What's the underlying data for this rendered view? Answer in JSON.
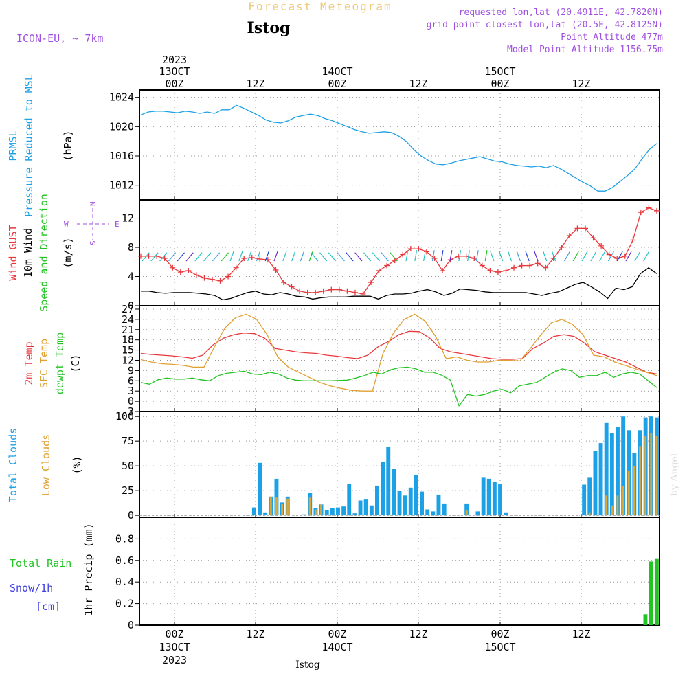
{
  "header": {
    "title_faded": "Forecast Meteogram",
    "station": "Istog",
    "model": "ICON-EU, ~ 7km",
    "requested": "requested lon,lat (20.4911E, 42.7820N)",
    "gridpoint": "grid point closest lon,lat (20.5E, 42.8125N)",
    "point_alt": "Point Altitude 477m",
    "model_alt": "Model Point Altitude 1156.75m",
    "watermark": "by Angel",
    "footer_station": "Istog"
  },
  "colors": {
    "pressure": "#1ca0e6",
    "gust": "#e8383c",
    "wind": "#000000",
    "t2m": "#e8383c",
    "sfc": "#e0a030",
    "dew": "#22c322",
    "total_cloud": "#1ca0e6",
    "low_cloud": "#d6a840",
    "rain": "#22c322",
    "snow": "#4040e0",
    "meta": "#a050e0",
    "faded": "#f0c878"
  },
  "panel_labels": {
    "pressure": [
      "PRMSL",
      "Pressure Reduced to MSL",
      "(hPa)"
    ],
    "wind": [
      "Wind GUST",
      "10m Wind",
      "Speed and Direction",
      "(m/s)"
    ],
    "compass": [
      "N",
      "S",
      "W",
      "E"
    ],
    "temp": [
      "2m Temp",
      "SFC Temp",
      "dewpt Temp",
      "(C)"
    ],
    "cloud": [
      "Total Clouds",
      "Low Clouds",
      "(%)"
    ],
    "precip": [
      "Total Rain",
      "Snow/1h",
      "[cm]",
      "1hr Precip (mm)"
    ]
  },
  "time_axis": {
    "top_year": "2023",
    "top_days": [
      "13OCT",
      "14OCT",
      "15OCT"
    ],
    "bottom_days": [
      "13OCT",
      "14OCT",
      "15OCT"
    ],
    "bottom_year": "2023",
    "ticks": [
      "00Z",
      "12Z",
      "00Z",
      "12Z",
      "00Z",
      "12Z"
    ]
  },
  "chart_data": [
    {
      "type": "line",
      "name": "pressure",
      "ylim": [
        1010,
        1025
      ],
      "yticks": [
        1012,
        1016,
        1020,
        1024
      ],
      "series": [
        {
          "name": "PRMSL",
          "values": [
            1021.6,
            1022.0,
            1022.1,
            1022.1,
            1022.0,
            1021.9,
            1022.1,
            1022.0,
            1021.8,
            1022.0,
            1021.8,
            1022.3,
            1022.3,
            1022.9,
            1022.5,
            1022.0,
            1021.5,
            1020.9,
            1020.6,
            1020.5,
            1020.8,
            1021.3,
            1021.5,
            1021.7,
            1021.5,
            1021.1,
            1020.8,
            1020.4,
            1020.0,
            1019.6,
            1019.3,
            1019.1,
            1019.2,
            1019.3,
            1019.2,
            1018.7,
            1018.0,
            1016.9,
            1016.0,
            1015.4,
            1014.9,
            1014.8,
            1015.0,
            1015.3,
            1015.5,
            1015.7,
            1015.9,
            1015.6,
            1015.3,
            1015.2,
            1014.9,
            1014.7,
            1014.6,
            1014.5,
            1014.6,
            1014.4,
            1014.7,
            1014.2,
            1013.6,
            1013.0,
            1012.4,
            1011.9,
            1011.2,
            1011.2,
            1011.7,
            1012.5,
            1013.3,
            1014.2,
            1015.6,
            1016.9,
            1017.7
          ]
        }
      ]
    },
    {
      "type": "line",
      "name": "wind",
      "ylim": [
        0,
        14.5
      ],
      "yticks": [
        0,
        4,
        8,
        12
      ],
      "series": [
        {
          "name": "Wind GUST",
          "values": [
            6.8,
            6.8,
            6.8,
            6.5,
            5.2,
            4.6,
            4.8,
            4.2,
            3.8,
            3.6,
            3.4,
            4.0,
            5.2,
            6.5,
            6.6,
            6.4,
            6.3,
            4.9,
            3.2,
            2.6,
            2.0,
            1.8,
            1.8,
            2.0,
            2.2,
            2.2,
            2.0,
            1.8,
            1.6,
            3.2,
            4.8,
            5.5,
            6.2,
            7.0,
            7.8,
            7.8,
            7.4,
            6.5,
            4.8,
            6.3,
            6.8,
            6.8,
            6.5,
            5.5,
            4.8,
            4.6,
            4.8,
            5.2,
            5.5,
            5.5,
            5.8,
            5.2,
            6.5,
            8.0,
            9.6,
            10.6,
            10.6,
            9.3,
            8.2,
            7.0,
            6.5,
            6.8,
            9.0,
            12.8,
            13.4,
            13.0
          ]
        },
        {
          "name": "10m Wind",
          "values": [
            2.0,
            2.0,
            1.8,
            1.7,
            1.8,
            1.8,
            1.8,
            1.7,
            1.6,
            1.4,
            0.8,
            1.0,
            1.4,
            1.8,
            2.0,
            1.6,
            1.5,
            1.8,
            1.6,
            1.3,
            1.2,
            0.9,
            1.1,
            1.2,
            1.2,
            1.2,
            1.3,
            1.3,
            1.3,
            0.9,
            1.4,
            1.6,
            1.6,
            1.7,
            2.0,
            2.2,
            1.9,
            1.4,
            1.7,
            2.3,
            2.2,
            2.1,
            1.9,
            1.8,
            1.8,
            1.8,
            1.8,
            1.8,
            1.6,
            1.4,
            1.7,
            1.9,
            2.4,
            2.9,
            3.2,
            2.6,
            1.9,
            1.0,
            2.4,
            2.2,
            2.6,
            4.4,
            5.2,
            4.4
          ]
        }
      ]
    },
    {
      "type": "line",
      "name": "temperature",
      "ylim": [
        -3,
        28
      ],
      "yticks": [
        -3,
        0,
        3,
        6,
        9,
        12,
        15,
        18,
        21,
        24,
        27
      ],
      "series": [
        {
          "name": "2m Temp",
          "values": [
            14.0,
            13.7,
            13.5,
            13.3,
            13.0,
            12.6,
            13.5,
            16.5,
            18.5,
            19.5,
            20.0,
            19.8,
            18.5,
            15.5,
            15.0,
            14.5,
            14.2,
            14.0,
            13.5,
            13.2,
            12.8,
            12.5,
            13.5,
            16.0,
            17.5,
            19.5,
            20.5,
            20.4,
            18.5,
            15.5,
            14.5,
            14.0,
            13.5,
            13.0,
            12.5,
            12.3,
            12.3,
            12.5,
            15.5,
            17.0,
            19.0,
            19.5,
            19.0,
            17.0,
            14.5,
            13.5,
            12.5,
            11.5,
            10.0,
            8.5,
            8.0
          ]
        },
        {
          "name": "SFC Temp",
          "values": [
            12.2,
            11.5,
            11.0,
            10.8,
            10.5,
            10.0,
            10.0,
            16.0,
            21.5,
            24.5,
            25.5,
            24.0,
            19.5,
            13.0,
            10.0,
            8.5,
            7.0,
            5.5,
            4.5,
            3.8,
            3.2,
            3.0,
            3.0,
            14.0,
            20.0,
            24.0,
            25.5,
            23.5,
            19.0,
            12.5,
            13.0,
            12.0,
            11.5,
            11.5,
            12.0,
            12.0,
            11.8,
            15.5,
            19.5,
            23.0,
            24.0,
            22.5,
            19.5,
            13.5,
            13.0,
            11.5,
            10.5,
            9.5,
            8.5,
            7.5
          ]
        },
        {
          "name": "dewpt Temp",
          "values": [
            5.5,
            5.0,
            6.3,
            6.8,
            6.5,
            6.5,
            6.8,
            6.3,
            6.0,
            7.5,
            8.2,
            8.5,
            8.8,
            8.0,
            7.8,
            8.5,
            8.0,
            6.8,
            6.2,
            6.0,
            6.0,
            6.0,
            6.0,
            6.1,
            6.2,
            6.8,
            7.5,
            8.5,
            8.0,
            9.2,
            9.8,
            10.0,
            9.5,
            8.5,
            8.5,
            7.6,
            6.2,
            -1.3,
            2.0,
            1.5,
            2.0,
            3.0,
            3.5,
            2.5,
            4.5,
            5.0,
            5.5,
            7.0,
            8.5,
            9.5,
            9.0,
            7.0,
            7.5,
            7.5,
            8.5,
            7.0,
            8.0,
            8.5,
            8.0,
            6.0,
            4.0
          ]
        }
      ]
    },
    {
      "type": "bar",
      "name": "clouds",
      "ylim": [
        -2,
        105
      ],
      "yticks": [
        0,
        25,
        50,
        75,
        100
      ],
      "series": [
        {
          "name": "Total Clouds",
          "values": [
            0,
            0,
            0,
            0,
            0,
            0,
            0,
            0,
            0,
            0,
            0,
            0,
            0,
            0,
            0,
            0,
            0,
            0,
            0,
            0,
            8,
            53,
            3,
            19,
            37,
            13,
            19,
            0,
            0,
            1,
            23,
            7,
            11,
            5,
            7,
            8,
            9,
            32,
            2,
            15,
            16,
            10,
            30,
            54,
            69,
            47,
            25,
            20,
            28,
            41,
            24,
            6,
            4,
            21,
            12,
            0,
            0,
            0,
            12,
            0,
            4,
            38,
            37,
            34,
            32,
            3,
            0,
            0,
            0,
            0,
            0,
            0,
            0,
            0,
            0,
            0,
            0,
            0,
            0,
            31,
            38,
            65,
            73,
            94,
            83,
            89,
            100,
            86,
            63,
            86,
            99,
            100,
            99
          ]
        },
        {
          "name": "Low Clouds",
          "values": [
            0,
            0,
            0,
            0,
            0,
            0,
            0,
            0,
            0,
            0,
            0,
            0,
            0,
            0,
            0,
            0,
            0,
            0,
            0,
            0,
            0,
            0,
            0,
            19,
            18,
            12,
            17,
            0,
            0,
            0,
            18,
            6,
            11,
            0,
            0,
            0,
            0,
            0,
            0,
            0,
            0,
            0,
            0,
            0,
            0,
            0,
            0,
            0,
            0,
            0,
            0,
            0,
            0,
            0,
            0,
            0,
            0,
            0,
            5,
            0,
            0,
            0,
            0,
            0,
            0,
            0,
            0,
            0,
            0,
            0,
            0,
            0,
            0,
            0,
            0,
            0,
            0,
            0,
            0,
            0,
            3,
            0,
            0,
            20,
            10,
            20,
            30,
            45,
            50,
            70,
            80,
            83,
            80
          ]
        }
      ]
    },
    {
      "type": "bar",
      "name": "precipitation",
      "ylim": [
        0,
        1.0
      ],
      "yticks": [
        0,
        0.2,
        0.4,
        0.6,
        0.8
      ],
      "series": [
        {
          "name": "Total Rain",
          "values": [
            0,
            0,
            0,
            0,
            0,
            0,
            0,
            0,
            0,
            0,
            0,
            0,
            0,
            0,
            0,
            0,
            0,
            0,
            0,
            0,
            0,
            0,
            0,
            0,
            0,
            0,
            0,
            0,
            0,
            0,
            0,
            0,
            0,
            0,
            0,
            0,
            0,
            0,
            0,
            0,
            0,
            0,
            0,
            0,
            0,
            0,
            0,
            0,
            0,
            0,
            0,
            0,
            0,
            0,
            0,
            0,
            0,
            0,
            0,
            0,
            0,
            0,
            0,
            0,
            0,
            0,
            0,
            0,
            0,
            0,
            0,
            0,
            0,
            0,
            0,
            0,
            0,
            0,
            0,
            0,
            0,
            0,
            0,
            0,
            0,
            0,
            0,
            0,
            0,
            0.1,
            0.59,
            0.62
          ]
        }
      ]
    }
  ]
}
